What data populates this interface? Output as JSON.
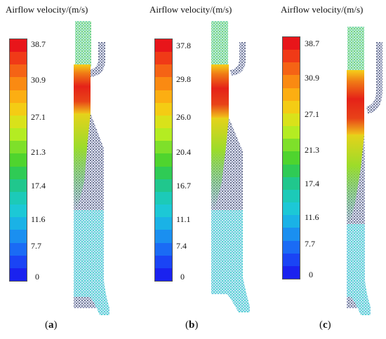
{
  "panels": [
    {
      "title": "Airflow velocity/(m/s)",
      "ticks": [
        "38.7",
        "30.9",
        "27.1",
        "21.3",
        "17.4",
        "11.6",
        "7.7",
        "0"
      ],
      "caption_open": "(",
      "caption_letter": "a",
      "caption_close": ")"
    },
    {
      "title": "Airflow velocity/(m/s)",
      "ticks": [
        "37.8",
        "29.8",
        "26.0",
        "20.4",
        "16.7",
        "11.1",
        "7.4",
        "0"
      ],
      "caption_open": "(",
      "caption_letter": "b",
      "caption_close": ")"
    },
    {
      "title": "Airflow velocity/(m/s)",
      "ticks": [
        "38.7",
        "30.9",
        "27.1",
        "21.3",
        "17.4",
        "11.6",
        "7.7",
        "0"
      ],
      "caption_open": "(",
      "caption_letter": "c",
      "caption_close": ")"
    }
  ],
  "colorscale": [
    "#e8151a",
    "#f03a17",
    "#f56315",
    "#fa8a12",
    "#fcae12",
    "#f4cc14",
    "#d9e21a",
    "#b4ec22",
    "#7ee02a",
    "#4fd42e",
    "#2fcb55",
    "#20c78d",
    "#1ccab8",
    "#1cc8d6",
    "#1ab2e6",
    "#1a8ff0",
    "#1a6bf5",
    "#1a44f5",
    "#1a22ef"
  ]
}
